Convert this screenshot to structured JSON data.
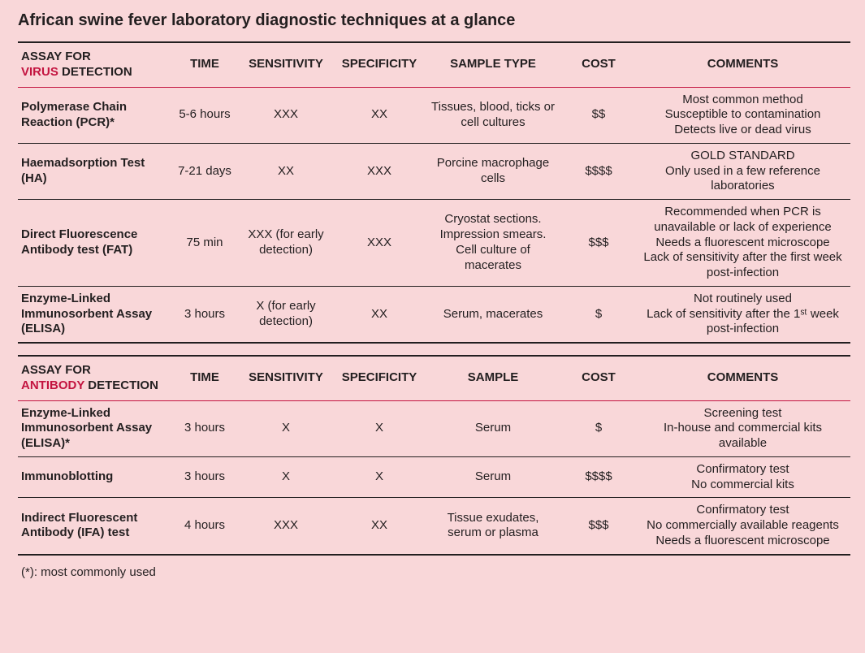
{
  "title": "African swine fever laboratory diagnostic techniques at a glance",
  "footnote": "(*): most commonly used",
  "colors": {
    "background": "#f9d7d9",
    "text": "#231f20",
    "highlight": "#c3133f",
    "rule_dark": "#231f20"
  },
  "sections": [
    {
      "header": {
        "assay_prefix": "ASSAY FOR",
        "assay_highlight": "VIRUS",
        "assay_suffix": " DETECTION",
        "time": "TIME",
        "sensitivity": "SENSITIVITY",
        "specificity": "SPECIFICITY",
        "sample": "SAMPLE TYPE",
        "cost": "COST",
        "comments": "COMMENTS"
      },
      "rows": [
        {
          "assay": "Polymerase Chain Reaction (PCR)*",
          "time": "5-6 hours",
          "sensitivity": "XXX",
          "specificity": "XX",
          "sample": "Tissues, blood, ticks or cell cultures",
          "cost": "$$",
          "comments": "Most common method\nSusceptible to contamination\nDetects live or dead virus"
        },
        {
          "assay": "Haemadsorption Test (HA)",
          "time": "7-21 days",
          "sensitivity": "XX",
          "specificity": "XXX",
          "sample": "Porcine macrophage cells",
          "cost": "$$$$",
          "comments": "GOLD STANDARD\nOnly used in a few reference laboratories"
        },
        {
          "assay": "Direct Fluorescence Antibody test (FAT)",
          "time": "75 min",
          "sensitivity": "XXX (for early detection)",
          "specificity": "XXX",
          "sample": "Cryostat sections. Impression smears. Cell culture of macerates",
          "cost": "$$$",
          "comments": "Recommended when PCR is unavailable or lack of experience\nNeeds a fluorescent microscope\nLack of sensitivity after the first week post-infection"
        },
        {
          "assay": "Enzyme-Linked Immunosorbent Assay (ELISA)",
          "time": "3 hours",
          "sensitivity": "X (for early detection)",
          "specificity": "XX",
          "sample": "Serum, macerates",
          "cost": "$",
          "comments": "Not routinely used\nLack of sensitivity after the 1ˢᵗ week post-infection"
        }
      ]
    },
    {
      "header": {
        "assay_prefix": "ASSAY FOR",
        "assay_highlight": "ANTIBODY",
        "assay_suffix": " DETECTION",
        "time": "TIME",
        "sensitivity": "SENSITIVITY",
        "specificity": "SPECIFICITY",
        "sample": "SAMPLE",
        "cost": "COST",
        "comments": "COMMENTS"
      },
      "rows": [
        {
          "assay": "Enzyme-Linked Immunosorbent Assay (ELISA)*",
          "time": "3 hours",
          "sensitivity": "X",
          "specificity": "X",
          "sample": "Serum",
          "cost": "$",
          "comments": "Screening test\nIn-house and commercial kits available"
        },
        {
          "assay": "Immunoblotting",
          "time": "3 hours",
          "sensitivity": "X",
          "specificity": "X",
          "sample": "Serum",
          "cost": "$$$$",
          "comments": "Confirmatory test\nNo commercial kits"
        },
        {
          "assay": "Indirect Fluorescent Antibody (IFA) test",
          "time": "4 hours",
          "sensitivity": "XXX",
          "specificity": "XX",
          "sample": "Tissue exudates, serum or plasma",
          "cost": "$$$",
          "comments": "Confirmatory test\nNo commercially available reagents\nNeeds a fluorescent microscope"
        }
      ]
    }
  ]
}
